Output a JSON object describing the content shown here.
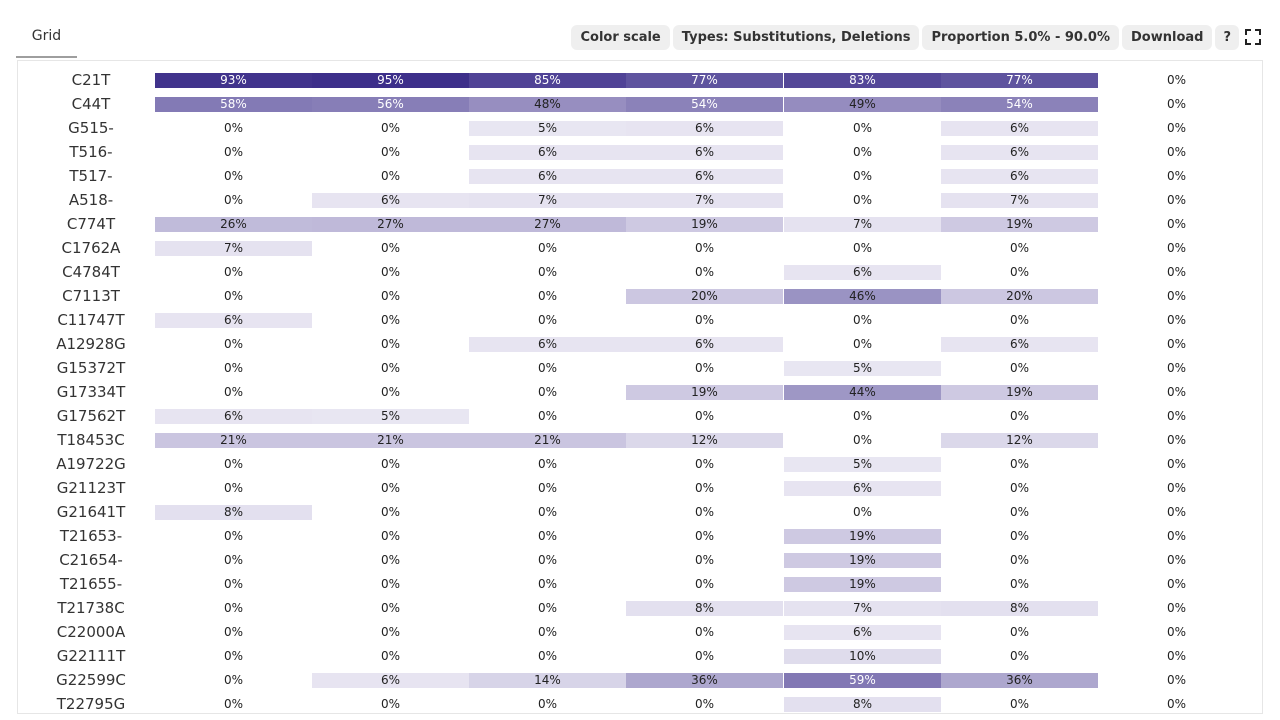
{
  "tabs": [
    {
      "label": "Grid"
    }
  ],
  "toolbar": {
    "color_scale": "Color scale",
    "types": "Types: Substitutions, Deletions",
    "proportion": "Proportion 5.0% - 90.0%",
    "download": "Download",
    "help": "?"
  },
  "colors": {
    "accent": "#3d2f8a",
    "low": "#f1eff7"
  },
  "grid": {
    "rows": [
      {
        "label": "C21T",
        "values": [
          93,
          95,
          85,
          77,
          83,
          77
        ],
        "last": "0%"
      },
      {
        "label": "C44T",
        "values": [
          58,
          56,
          48,
          54,
          49,
          54
        ],
        "last": "0%"
      },
      {
        "label": "G515-",
        "values": [
          0,
          0,
          5,
          6,
          0,
          6
        ],
        "last": "0%"
      },
      {
        "label": "T516-",
        "values": [
          0,
          0,
          6,
          6,
          0,
          6
        ],
        "last": "0%"
      },
      {
        "label": "T517-",
        "values": [
          0,
          0,
          6,
          6,
          0,
          6
        ],
        "last": "0%"
      },
      {
        "label": "A518-",
        "values": [
          0,
          6,
          7,
          7,
          0,
          7
        ],
        "last": "0%"
      },
      {
        "label": "C774T",
        "values": [
          26,
          27,
          27,
          19,
          7,
          19
        ],
        "last": "0%"
      },
      {
        "label": "C1762A",
        "values": [
          7,
          0,
          0,
          0,
          0,
          0
        ],
        "last": "0%"
      },
      {
        "label": "C4784T",
        "values": [
          0,
          0,
          0,
          0,
          6,
          0
        ],
        "last": "0%"
      },
      {
        "label": "C7113T",
        "values": [
          0,
          0,
          0,
          20,
          46,
          20
        ],
        "last": "0%"
      },
      {
        "label": "C11747T",
        "values": [
          6,
          0,
          0,
          0,
          0,
          0
        ],
        "last": "0%"
      },
      {
        "label": "A12928G",
        "values": [
          0,
          0,
          6,
          6,
          0,
          6
        ],
        "last": "0%"
      },
      {
        "label": "G15372T",
        "values": [
          0,
          0,
          0,
          0,
          5,
          0
        ],
        "last": "0%"
      },
      {
        "label": "G17334T",
        "values": [
          0,
          0,
          0,
          19,
          44,
          19
        ],
        "last": "0%"
      },
      {
        "label": "G17562T",
        "values": [
          6,
          5,
          0,
          0,
          0,
          0
        ],
        "last": "0%"
      },
      {
        "label": "T18453C",
        "values": [
          21,
          21,
          21,
          12,
          0,
          12
        ],
        "last": "0%"
      },
      {
        "label": "A19722G",
        "values": [
          0,
          0,
          0,
          0,
          5,
          0
        ],
        "last": "0%"
      },
      {
        "label": "G21123T",
        "values": [
          0,
          0,
          0,
          0,
          6,
          0
        ],
        "last": "0%"
      },
      {
        "label": "G21641T",
        "values": [
          8,
          0,
          0,
          0,
          0,
          0
        ],
        "last": "0%"
      },
      {
        "label": "T21653-",
        "values": [
          0,
          0,
          0,
          0,
          19,
          0
        ],
        "last": "0%"
      },
      {
        "label": "C21654-",
        "values": [
          0,
          0,
          0,
          0,
          19,
          0
        ],
        "last": "0%"
      },
      {
        "label": "T21655-",
        "values": [
          0,
          0,
          0,
          0,
          19,
          0
        ],
        "last": "0%"
      },
      {
        "label": "T21738C",
        "values": [
          0,
          0,
          0,
          8,
          7,
          8
        ],
        "last": "0%"
      },
      {
        "label": "C22000A",
        "values": [
          0,
          0,
          0,
          0,
          6,
          0
        ],
        "last": "0%"
      },
      {
        "label": "G22111T",
        "values": [
          0,
          0,
          0,
          0,
          10,
          0
        ],
        "last": "0%"
      },
      {
        "label": "G22599C",
        "values": [
          0,
          6,
          14,
          36,
          59,
          36
        ],
        "last": "0%"
      },
      {
        "label": "T22795G",
        "values": [
          0,
          0,
          0,
          0,
          8,
          0
        ],
        "last": "0%"
      }
    ]
  }
}
